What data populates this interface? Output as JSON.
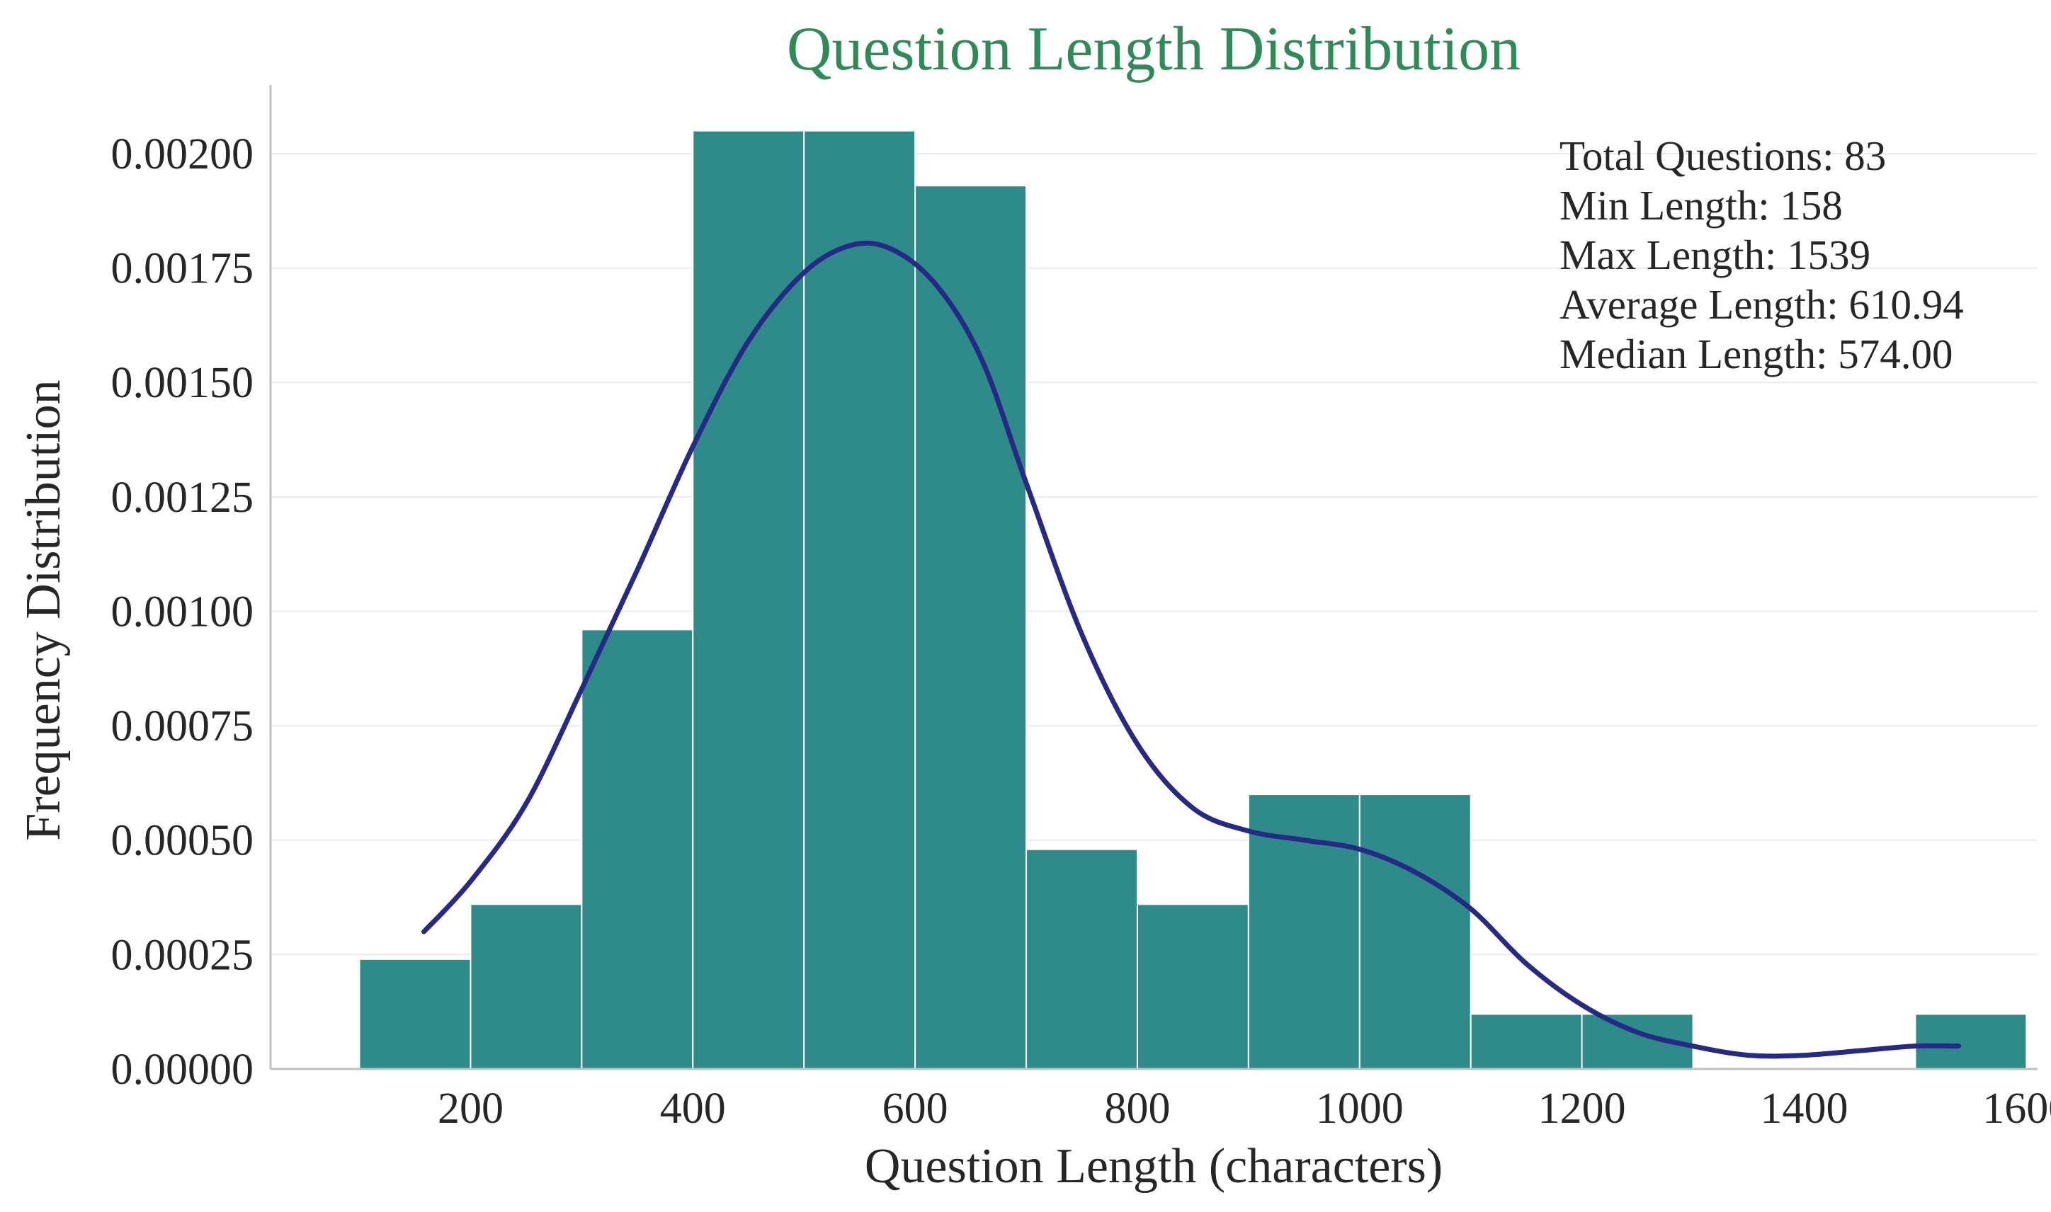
{
  "chart_data": {
    "type": "bar",
    "title": "Question Length Distribution",
    "xlabel": "Question Length (characters)",
    "ylabel": "Frequency Distribution",
    "xlim": [
      20,
      1610
    ],
    "ylim": [
      0,
      0.00215
    ],
    "x_ticks": [
      200,
      400,
      600,
      800,
      1000,
      1200,
      1400,
      1600
    ],
    "x_tick_labels": [
      "200",
      "400",
      "600",
      "800",
      "1000",
      "1200",
      "1400",
      "1600"
    ],
    "y_ticks": [
      0,
      0.00025,
      0.0005,
      0.00075,
      0.001,
      0.00125,
      0.0015,
      0.00175,
      0.002
    ],
    "y_tick_labels": [
      "0.00000",
      "0.00025",
      "0.00050",
      "0.00075",
      "0.00100",
      "0.00125",
      "0.00150",
      "0.00175",
      "0.00200"
    ],
    "grid": "horizontal",
    "bins": [
      {
        "start": 100,
        "end": 200,
        "value": 0.00024
      },
      {
        "start": 200,
        "end": 300,
        "value": 0.00036
      },
      {
        "start": 300,
        "end": 400,
        "value": 0.00096
      },
      {
        "start": 400,
        "end": 500,
        "value": 0.00205
      },
      {
        "start": 500,
        "end": 600,
        "value": 0.00205
      },
      {
        "start": 600,
        "end": 700,
        "value": 0.00193
      },
      {
        "start": 700,
        "end": 800,
        "value": 0.00048
      },
      {
        "start": 800,
        "end": 900,
        "value": 0.00036
      },
      {
        "start": 900,
        "end": 1000,
        "value": 0.0006
      },
      {
        "start": 1000,
        "end": 1100,
        "value": 0.0006
      },
      {
        "start": 1100,
        "end": 1200,
        "value": 0.00012
      },
      {
        "start": 1200,
        "end": 1300,
        "value": 0.00012
      },
      {
        "start": 1300,
        "end": 1400,
        "value": 0
      },
      {
        "start": 1400,
        "end": 1500,
        "value": 0
      },
      {
        "start": 1500,
        "end": 1600,
        "value": 0.00012
      }
    ],
    "kde": {
      "x": [
        158,
        200,
        250,
        300,
        350,
        400,
        450,
        500,
        543,
        580,
        620,
        660,
        700,
        750,
        800,
        850,
        900,
        950,
        1000,
        1050,
        1100,
        1150,
        1200,
        1250,
        1300,
        1350,
        1400,
        1450,
        1500,
        1539
      ],
      "y": [
        0.0003,
        0.00041,
        0.00058,
        0.00083,
        0.00109,
        0.00136,
        0.00159,
        0.00174,
        0.0018,
        0.00179,
        0.00171,
        0.00155,
        0.00128,
        0.00095,
        0.00071,
        0.00057,
        0.00052,
        0.0005,
        0.00048,
        0.00043,
        0.00035,
        0.00023,
        0.00014,
        8e-05,
        5e-05,
        3e-05,
        3e-05,
        4e-05,
        5e-05,
        5e-05
      ]
    },
    "stats": [
      "Total Questions: 83",
      "Min Length: 158",
      "Max Length: 1539",
      "Average Length: 610.94",
      "Median Length: 574.00"
    ],
    "colors": {
      "bar": "#2e8b8a",
      "kde": "#262a85",
      "title": "#2e8b57"
    }
  }
}
